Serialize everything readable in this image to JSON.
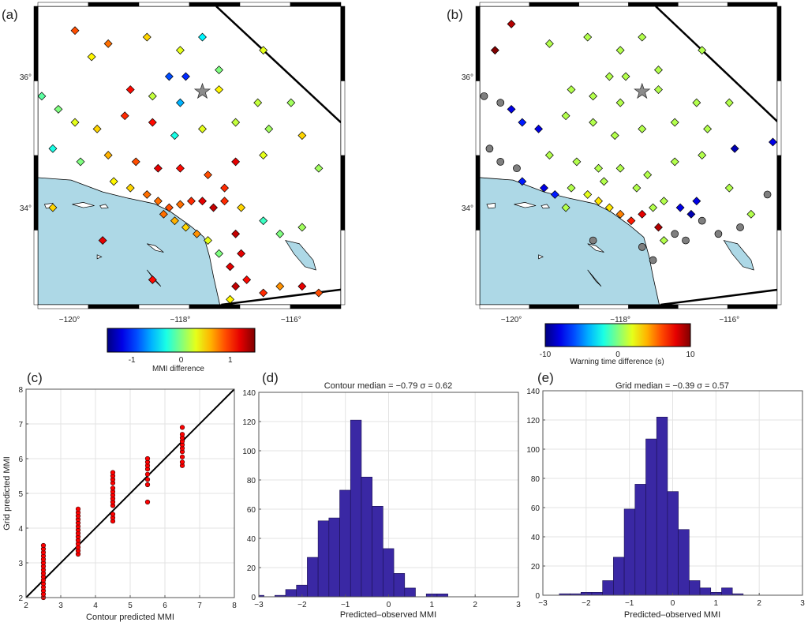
{
  "chart_data": [
    {
      "panel": "(a)",
      "type": "scatter",
      "map": true,
      "xlim": [
        -120.57,
        -115.1
      ],
      "ylim": [
        32.52,
        37.07
      ],
      "xticks": [
        -120,
        -118,
        -116
      ],
      "xtick_labels": [
        "−120°",
        "−118°",
        "−116°"
      ],
      "yticks": [
        34,
        36
      ],
      "ytick_labels": [
        "34°",
        "36°"
      ],
      "colorbar": {
        "label": "MMI difference",
        "range": [
          -1.5,
          1.5
        ],
        "ticks": [
          -1,
          0,
          1
        ],
        "tick_labels": [
          "-1",
          "0",
          "1"
        ],
        "colormap": "jet"
      },
      "epicenter": {
        "lon": -117.6,
        "lat": 35.77
      },
      "stations": [
        [
          -119.9,
          36.7,
          0.9
        ],
        [
          -119.3,
          36.5,
          0.8
        ],
        [
          -119.6,
          36.3,
          0.4
        ],
        [
          -118.6,
          36.6,
          0.5
        ],
        [
          -118.0,
          36.4,
          0.3
        ],
        [
          -117.6,
          36.6,
          -0.4
        ],
        [
          -117.3,
          36.1,
          0.0
        ],
        [
          -116.5,
          36.4,
          0.3
        ],
        [
          -118.2,
          36.0,
          -0.9
        ],
        [
          -117.9,
          36.0,
          -1.0
        ],
        [
          -118.9,
          35.8,
          1.1
        ],
        [
          -118.5,
          35.7,
          0.2
        ],
        [
          -118.0,
          35.6,
          -0.6
        ],
        [
          -117.3,
          35.8,
          0.4
        ],
        [
          -116.6,
          35.6,
          0.2
        ],
        [
          -116.0,
          35.6,
          0.1
        ],
        [
          -115.8,
          35.1,
          0.5
        ],
        [
          -120.5,
          35.7,
          -0.1
        ],
        [
          -120.2,
          35.5,
          0.0
        ],
        [
          -119.9,
          35.3,
          0.3
        ],
        [
          -119.5,
          35.2,
          0.5
        ],
        [
          -119.0,
          35.4,
          1.0
        ],
        [
          -118.5,
          35.3,
          1.1
        ],
        [
          -118.1,
          35.1,
          -0.3
        ],
        [
          -117.6,
          35.2,
          0.3
        ],
        [
          -117.0,
          35.3,
          0.2
        ],
        [
          -116.4,
          35.2,
          0.1
        ],
        [
          -120.3,
          34.9,
          -0.3
        ],
        [
          -119.8,
          34.7,
          0.0
        ],
        [
          -119.3,
          34.8,
          0.6
        ],
        [
          -118.8,
          34.7,
          0.9
        ],
        [
          -118.4,
          34.6,
          1.2
        ],
        [
          -118.0,
          34.6,
          1.1
        ],
        [
          -117.5,
          34.5,
          0.9
        ],
        [
          -117.0,
          34.7,
          1.2
        ],
        [
          -116.5,
          34.8,
          0.3
        ],
        [
          -115.5,
          34.6,
          0.1
        ],
        [
          -119.2,
          34.4,
          0.4
        ],
        [
          -118.9,
          34.3,
          0.5
        ],
        [
          -118.6,
          34.2,
          0.8
        ],
        [
          -118.4,
          34.1,
          0.8
        ],
        [
          -118.2,
          34.0,
          0.9
        ],
        [
          -118.0,
          34.05,
          0.8
        ],
        [
          -117.8,
          34.1,
          1.0
        ],
        [
          -117.6,
          34.1,
          1.2
        ],
        [
          -117.4,
          34.0,
          1.3
        ],
        [
          -117.2,
          34.1,
          1.0
        ],
        [
          -116.9,
          34.0,
          0.5
        ],
        [
          -116.5,
          33.8,
          -0.2
        ],
        [
          -116.2,
          33.6,
          0.0
        ],
        [
          -115.8,
          33.7,
          0.1
        ],
        [
          -118.3,
          33.9,
          0.8
        ],
        [
          -118.1,
          33.8,
          0.6
        ],
        [
          -117.9,
          33.7,
          0.5
        ],
        [
          -117.7,
          33.6,
          0.7
        ],
        [
          -117.5,
          33.5,
          0.3
        ],
        [
          -117.3,
          33.3,
          0.0
        ],
        [
          -117.1,
          33.1,
          1.2
        ],
        [
          -117.0,
          32.8,
          1.3
        ],
        [
          -116.8,
          32.9,
          1.1
        ],
        [
          -116.5,
          32.7,
          1.0
        ],
        [
          -116.2,
          32.8,
          0.7
        ],
        [
          -117.1,
          32.6,
          0.4
        ],
        [
          -115.8,
          32.8,
          1.2
        ],
        [
          -115.5,
          32.7,
          0.9
        ],
        [
          -119.4,
          33.5,
          1.2
        ],
        [
          -118.5,
          32.9,
          1.1
        ],
        [
          -120.3,
          34.0,
          0.5
        ],
        [
          -117.0,
          33.6,
          1.3
        ],
        [
          -116.9,
          33.3,
          1.2
        ],
        [
          -117.2,
          34.3,
          1.0
        ]
      ]
    },
    {
      "panel": "(b)",
      "type": "scatter",
      "map": true,
      "xlim": [
        -120.58,
        -115.12
      ],
      "ylim": [
        32.52,
        37.07
      ],
      "xticks": [
        -120,
        -118,
        -116
      ],
      "xtick_labels": [
        "−120°",
        "−118°",
        "−116°"
      ],
      "yticks": [
        34,
        36
      ],
      "ytick_labels": [
        "34°",
        "36°"
      ],
      "colorbar": {
        "label": "Warning time difference (s)",
        "range": [
          -10,
          10
        ],
        "ticks": [
          -10,
          0,
          10
        ],
        "tick_labels": [
          "-10",
          "0",
          "10"
        ],
        "colormap": "jet"
      },
      "epicenter": {
        "lon": -117.6,
        "lat": 35.77
      },
      "no_value_color": "#7f7f7f",
      "stations": [
        [
          -120.0,
          36.8,
          9
        ],
        [
          -120.3,
          36.4,
          10
        ],
        [
          -119.3,
          36.5,
          1
        ],
        [
          -118.6,
          36.6,
          1
        ],
        [
          -118.0,
          36.4,
          1
        ],
        [
          -117.6,
          36.6,
          1
        ],
        [
          -117.3,
          36.1,
          1
        ],
        [
          -116.5,
          36.4,
          1
        ],
        [
          -118.2,
          36.0,
          1
        ],
        [
          -117.9,
          36.0,
          1
        ],
        [
          -118.9,
          35.8,
          1
        ],
        [
          -118.5,
          35.7,
          1
        ],
        [
          -118.0,
          35.6,
          1
        ],
        [
          -117.3,
          35.8,
          1
        ],
        [
          -116.6,
          35.6,
          1
        ],
        [
          -116.0,
          35.6,
          1
        ],
        [
          -115.2,
          35.0,
          -8
        ],
        [
          -120.5,
          35.7,
          null
        ],
        [
          -120.2,
          35.6,
          null
        ],
        [
          -120.0,
          35.5,
          -8
        ],
        [
          -119.8,
          35.3,
          -7
        ],
        [
          -119.5,
          35.2,
          -8
        ],
        [
          -119.0,
          35.4,
          1
        ],
        [
          -118.5,
          35.3,
          1
        ],
        [
          -118.1,
          35.1,
          1
        ],
        [
          -117.6,
          35.2,
          1
        ],
        [
          -117.0,
          35.3,
          1
        ],
        [
          -116.4,
          35.2,
          1
        ],
        [
          -115.9,
          34.9,
          -9
        ],
        [
          -120.4,
          34.9,
          null
        ],
        [
          -120.2,
          34.7,
          null
        ],
        [
          -119.9,
          34.6,
          null
        ],
        [
          -119.8,
          34.4,
          -7
        ],
        [
          -119.3,
          34.8,
          1
        ],
        [
          -118.8,
          34.7,
          1
        ],
        [
          -118.4,
          34.6,
          1
        ],
        [
          -118.0,
          34.6,
          1
        ],
        [
          -117.5,
          34.5,
          1
        ],
        [
          -117.0,
          34.7,
          1
        ],
        [
          -116.5,
          34.8,
          1
        ],
        [
          -119.4,
          34.3,
          -8
        ],
        [
          -119.2,
          34.2,
          -7
        ],
        [
          -118.9,
          34.3,
          1
        ],
        [
          -118.6,
          34.2,
          2
        ],
        [
          -118.4,
          34.1,
          3
        ],
        [
          -118.2,
          34.0,
          3
        ],
        [
          -118.0,
          33.9,
          5
        ],
        [
          -117.8,
          33.8,
          7
        ],
        [
          -117.6,
          33.9,
          8
        ],
        [
          -117.4,
          34.0,
          1
        ],
        [
          -117.2,
          34.1,
          1
        ],
        [
          -116.9,
          34.0,
          -8
        ],
        [
          -116.7,
          33.9,
          -9
        ],
        [
          -116.6,
          34.1,
          -8
        ],
        [
          -116.5,
          33.8,
          null
        ],
        [
          -116.2,
          33.6,
          null
        ],
        [
          -115.8,
          33.7,
          null
        ],
        [
          -117.3,
          33.7,
          9
        ],
        [
          -117.2,
          33.5,
          1
        ],
        [
          -117.0,
          33.6,
          null
        ],
        [
          -116.8,
          33.5,
          null
        ],
        [
          -117.6,
          33.4,
          null
        ],
        [
          -117.4,
          33.2,
          null
        ],
        [
          -118.5,
          33.5,
          null
        ],
        [
          -115.3,
          34.2,
          null
        ],
        [
          -116.0,
          34.3,
          1
        ],
        [
          -115.6,
          33.9,
          1
        ],
        [
          -117.7,
          34.3,
          1
        ],
        [
          -118.3,
          34.4,
          1
        ],
        [
          -119.0,
          34.0,
          1
        ]
      ]
    },
    {
      "panel": "(c)",
      "type": "scatter",
      "xlabel": "Contour predicted MMI",
      "ylabel": "Grid predicted MMI",
      "xlim": [
        2,
        8
      ],
      "ylim": [
        2,
        8
      ],
      "xticks": [
        2,
        3,
        4,
        5,
        6,
        7,
        8
      ],
      "yticks": [
        2,
        3,
        4,
        5,
        6,
        7,
        8
      ],
      "grid": true,
      "reference_line": "y = x",
      "marker_color": "#ff0000",
      "groups": [
        {
          "x": 2.5,
          "y": [
            2.0,
            2.1,
            2.2,
            2.3,
            2.4,
            2.5,
            2.6,
            2.7,
            2.8,
            2.9,
            3.0,
            3.1,
            3.2,
            3.3,
            3.4,
            3.5
          ]
        },
        {
          "x": 3.5,
          "y": [
            3.25,
            3.35,
            3.45,
            3.55,
            3.65,
            3.75,
            3.85,
            3.95,
            4.05,
            4.15,
            4.25,
            4.35,
            4.45,
            4.55
          ]
        },
        {
          "x": 4.5,
          "y": [
            4.2,
            4.3,
            4.4,
            4.65,
            4.75,
            4.85,
            4.95,
            5.05,
            5.15,
            5.3,
            5.4,
            5.5,
            5.6
          ]
        },
        {
          "x": 5.5,
          "y": [
            4.75,
            5.25,
            5.4,
            5.55,
            5.7,
            5.8,
            5.9,
            6.0
          ]
        },
        {
          "x": 6.5,
          "y": [
            5.8,
            5.9,
            6.05,
            6.2,
            6.3,
            6.4,
            6.5,
            6.6,
            6.7,
            6.9
          ]
        }
      ]
    },
    {
      "panel": "(d)",
      "type": "bar",
      "title": "Contour median = −0.79 σ = 0.62",
      "xlabel": "Predicted–observed MMI",
      "xlim": [
        -3,
        3
      ],
      "ylim": [
        0,
        140
      ],
      "xticks": [
        -3,
        -2,
        -1,
        0,
        1,
        2,
        3
      ],
      "yticks": [
        0,
        20,
        40,
        60,
        80,
        100,
        120,
        140
      ],
      "grid": true,
      "bar_color": "#3a28a4",
      "bin_width": 0.25,
      "bin_left_edges": [
        -3.13,
        -2.63,
        -2.38,
        -2.13,
        -1.88,
        -1.63,
        -1.38,
        -1.13,
        -0.88,
        -0.63,
        -0.38,
        -0.13,
        0.12,
        0.37,
        0.87,
        1.12
      ],
      "counts": [
        1,
        1,
        5,
        8,
        27,
        52,
        54,
        73,
        121,
        82,
        62,
        33,
        16,
        6,
        2,
        2
      ]
    },
    {
      "panel": "(e)",
      "type": "bar",
      "title": "Grid median = −0.39 σ = 0.57",
      "xlabel": "Predicted–observed MMI",
      "xlim": [
        -3,
        3
      ],
      "ylim": [
        0,
        140
      ],
      "xticks": [
        -3,
        -2,
        -1,
        0,
        1,
        2,
        3
      ],
      "yticks": [
        0,
        20,
        40,
        60,
        80,
        100,
        120,
        140
      ],
      "grid": true,
      "bar_color": "#3a28a4",
      "bin_width": 0.25,
      "bin_left_edges": [
        -2.62,
        -2.37,
        -2.12,
        -1.87,
        -1.62,
        -1.37,
        -1.12,
        -0.87,
        -0.62,
        -0.37,
        -0.12,
        0.13,
        0.38,
        0.63,
        0.88,
        1.13,
        1.38
      ],
      "counts": [
        1,
        1,
        2,
        2,
        10,
        26,
        59,
        76,
        107,
        122,
        71,
        45,
        10,
        5,
        2,
        5,
        1
      ]
    }
  ],
  "colors": {
    "ocean": "#add8e6",
    "land": "#ffffff"
  }
}
